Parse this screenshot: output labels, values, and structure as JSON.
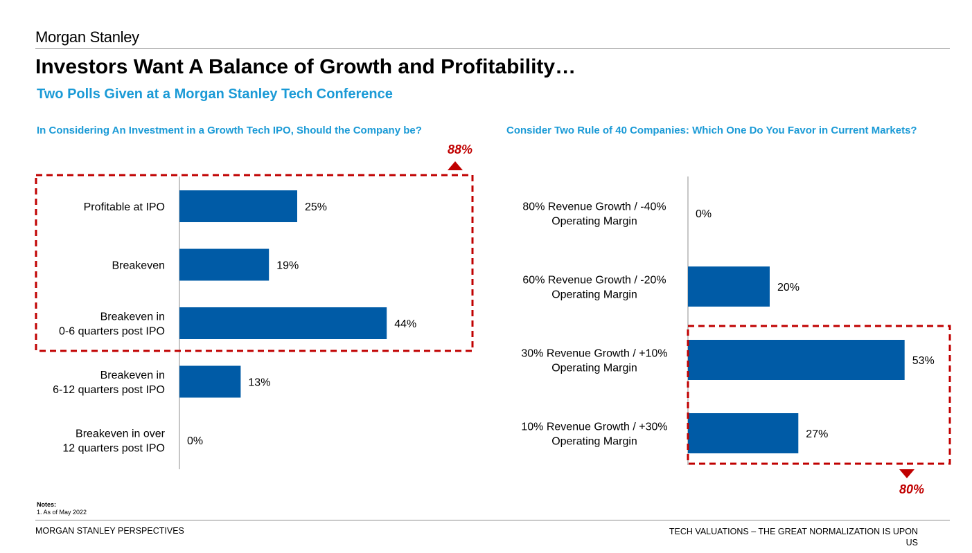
{
  "header": {
    "logo": "Morgan Stanley",
    "title": "Investors Want A Balance of Growth and Profitability…",
    "subtitle": "Two Polls Given at a Morgan Stanley Tech Conference"
  },
  "colors": {
    "bar": "#005ba6",
    "accent": "#1a9ad6",
    "highlight": "#c00000"
  },
  "chart_data": [
    {
      "type": "bar",
      "orientation": "horizontal",
      "title": "In Considering An Investment in a Growth Tech IPO, Should the Company be?",
      "categories": [
        [
          "Profitable at IPO"
        ],
        [
          "Breakeven"
        ],
        [
          "Breakeven in",
          "0-6 quarters post IPO"
        ],
        [
          "Breakeven in",
          "6-12 quarters post IPO"
        ],
        [
          "Breakeven in over",
          "12 quarters post IPO"
        ]
      ],
      "values": [
        25,
        19,
        44,
        13,
        0
      ],
      "value_labels": [
        "25%",
        "19%",
        "44%",
        "13%",
        "0%"
      ],
      "xlim": [
        0,
        100
      ],
      "highlight": {
        "categories": [
          0,
          1,
          2
        ],
        "total_label": "88%",
        "marker": "up-triangle"
      }
    },
    {
      "type": "bar",
      "orientation": "horizontal",
      "title": "Consider Two Rule of 40 Companies: Which One Do You Favor in Current Markets?",
      "categories": [
        [
          "80% Revenue Growth / -40%",
          "Operating Margin"
        ],
        [
          "60% Revenue Growth / -20%",
          "Operating Margin"
        ],
        [
          "30% Revenue Growth / +10%",
          "Operating Margin"
        ],
        [
          "10% Revenue Growth / +30%",
          "Operating Margin"
        ]
      ],
      "values": [
        0,
        20,
        53,
        27
      ],
      "value_labels": [
        "0%",
        "20%",
        "53%",
        "27%"
      ],
      "xlim": [
        0,
        100
      ],
      "highlight": {
        "categories": [
          2,
          3
        ],
        "total_label": "80%",
        "marker": "down-triangle"
      }
    }
  ],
  "notes": {
    "title": "Notes:",
    "items": [
      "1.  As of May 2022"
    ]
  },
  "footer": {
    "left": "MORGAN STANLEY PERSPECTIVES",
    "right": "TECH VALUATIONS – THE GREAT NORMALIZATION IS UPON US"
  }
}
